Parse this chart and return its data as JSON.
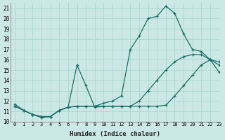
{
  "xlabel": "Humidex (Indice chaleur)",
  "bg_color": "#cce8e6",
  "grid_color": "#b0d8d5",
  "line_color": "#1a7068",
  "xlim": [
    -0.5,
    23
  ],
  "ylim": [
    10,
    21.5
  ],
  "yticks": [
    10,
    11,
    12,
    13,
    14,
    15,
    16,
    17,
    18,
    19,
    20,
    21
  ],
  "xticks": [
    0,
    1,
    2,
    3,
    4,
    5,
    6,
    7,
    8,
    9,
    10,
    11,
    12,
    13,
    14,
    15,
    16,
    17,
    18,
    19,
    20,
    21,
    22,
    23
  ],
  "line1_x": [
    0,
    1,
    2,
    3,
    4,
    5,
    6,
    7,
    8,
    9,
    10,
    11,
    12,
    13,
    14,
    15,
    16,
    17,
    18,
    19,
    20,
    21,
    22,
    23
  ],
  "line1_y": [
    11.5,
    11.1,
    10.7,
    10.4,
    10.5,
    11.1,
    11.4,
    15.5,
    13.5,
    11.4,
    11.5,
    11.5,
    11.5,
    11.5,
    11.5,
    11.5,
    11.5,
    11.6,
    12.5,
    13.5,
    14.5,
    15.5,
    16.0,
    14.8
  ],
  "line2_x": [
    0,
    1,
    2,
    3,
    4,
    5,
    6,
    7,
    8,
    9,
    10,
    11,
    12,
    13,
    14,
    15,
    16,
    17,
    18,
    19,
    20,
    21,
    22,
    23
  ],
  "line2_y": [
    11.7,
    11.1,
    10.7,
    10.5,
    10.5,
    11.1,
    11.4,
    11.5,
    11.5,
    11.5,
    11.8,
    12.0,
    12.5,
    17.0,
    18.3,
    20.0,
    20.2,
    21.2,
    20.5,
    18.5,
    17.0,
    16.8,
    16.0,
    15.5
  ],
  "line3_x": [
    0,
    1,
    2,
    3,
    4,
    5,
    6,
    7,
    8,
    9,
    10,
    11,
    12,
    13,
    14,
    15,
    16,
    17,
    18,
    19,
    20,
    21,
    22,
    23
  ],
  "line3_y": [
    11.5,
    11.1,
    10.7,
    10.5,
    10.5,
    11.1,
    11.4,
    11.5,
    11.5,
    11.5,
    11.5,
    11.5,
    11.5,
    11.5,
    12.0,
    13.0,
    14.0,
    15.0,
    15.8,
    16.3,
    16.5,
    16.5,
    16.0,
    15.8
  ]
}
